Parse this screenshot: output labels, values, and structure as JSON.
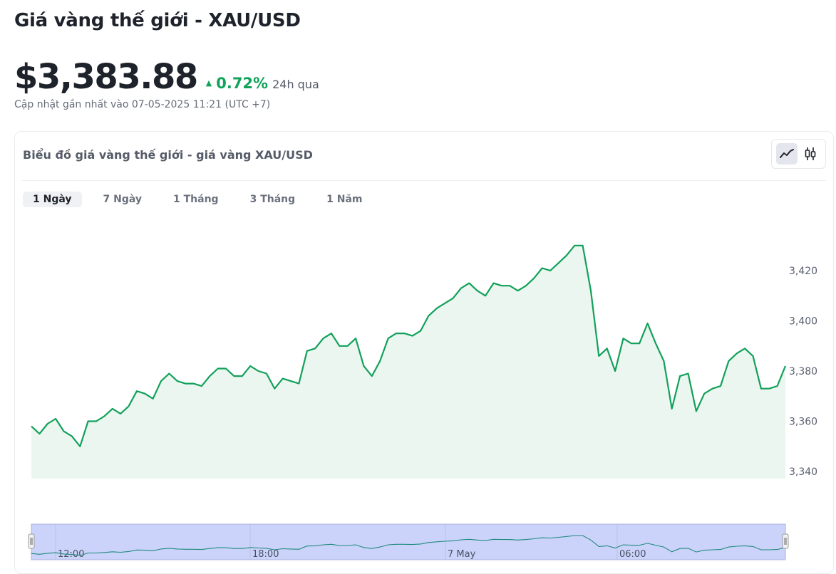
{
  "page": {
    "title": "Giá vàng thế giới - XAU/USD",
    "price": "$3,383.88",
    "change": "0.72%",
    "change_period": "24h qua",
    "updated": "Cập nhật gần nhất vào 07-05-2025 11:21 (UTC +7)"
  },
  "chart_card": {
    "title": "Biểu đồ giá vàng thế giới - giá vàng XAU/USD",
    "toggle_icons": [
      "line-chart-icon",
      "candlestick-icon"
    ],
    "active_toggle": "line",
    "range_tabs": [
      "1 Ngày",
      "7 Ngày",
      "1 Tháng",
      "3 Tháng",
      "1 Năm"
    ],
    "active_range": "1 Ngày"
  },
  "colors": {
    "line": "#12a05a",
    "area_fill": "#eaf6ef",
    "change_up": "#12a35a",
    "navigator_bg": "#ccd3fa"
  },
  "chart_data": {
    "type": "area",
    "title": "",
    "xlabel": "",
    "ylabel": "",
    "ylim": [
      3340,
      3435
    ],
    "y_ticks": [
      "3,420",
      "3,400",
      "3,380",
      "3,360",
      "3,340"
    ],
    "y_tick_values": [
      3420,
      3400,
      3380,
      3360,
      3340
    ],
    "navigator_labels": [
      "12:00",
      "18:00",
      "7 May",
      "06:00"
    ],
    "grid": false,
    "series": [
      {
        "values": [
          3358,
          3355,
          3359,
          3361,
          3356,
          3354,
          3350,
          3360,
          3360,
          3362,
          3365,
          3363,
          3366,
          3372,
          3371,
          3369,
          3376,
          3379,
          3376,
          3375,
          3375,
          3374,
          3378,
          3381,
          3381,
          3378,
          3378,
          3382,
          3380,
          3379,
          3373,
          3377,
          3376,
          3375,
          3388,
          3389,
          3393,
          3395,
          3390,
          3390,
          3393,
          3382,
          3378,
          3384,
          3393,
          3395,
          3395,
          3394,
          3396,
          3402,
          3405,
          3407,
          3409,
          3413,
          3415,
          3412,
          3410,
          3415,
          3414,
          3414,
          3412,
          3414,
          3417,
          3421,
          3420,
          3423,
          3426,
          3430,
          3430,
          3412,
          3386,
          3389,
          3380,
          3393,
          3391,
          3391,
          3399,
          3391,
          3384,
          3365,
          3378,
          3379,
          3364,
          3371,
          3373,
          3374,
          3384,
          3387,
          3389,
          3386,
          3373,
          3373,
          3374,
          3382
        ]
      }
    ]
  }
}
